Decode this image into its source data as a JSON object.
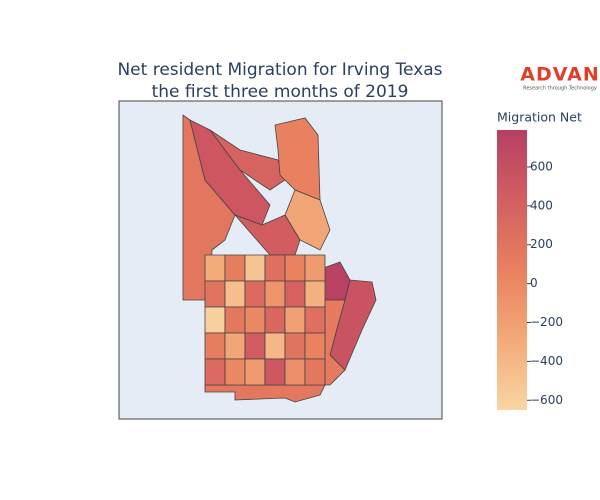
{
  "chart_data": {
    "type": "choropleth",
    "title": [
      "Net resident Migration for Irving Texas",
      "the first three months of 2019"
    ],
    "logo": {
      "name": "ADVAN",
      "tagline": "Research through Technology"
    },
    "colorbar_title": "Migration Net",
    "colorscale": [
      [
        0,
        "#f8d6a3"
      ],
      [
        0.25,
        "#f3aa79"
      ],
      [
        0.5,
        "#e9805f"
      ],
      [
        0.75,
        "#d45e60"
      ],
      [
        1,
        "#b73f63"
      ]
    ],
    "zlim": [
      -650,
      790
    ],
    "zticks": [
      {
        "value": 600,
        "label": "600"
      },
      {
        "value": 400,
        "label": "400"
      },
      {
        "value": 200,
        "label": "200"
      },
      {
        "value": 0,
        "label": "0"
      },
      {
        "value": -200,
        "label": "−200"
      },
      {
        "value": -400,
        "label": "−400"
      },
      {
        "value": -600,
        "label": "−600"
      }
    ],
    "values": [
      180,
      520,
      380,
      60,
      -250,
      450,
      760,
      560,
      120,
      150,
      -300,
      100,
      -500,
      250,
      50,
      -150,
      200,
      -450,
      300,
      -100,
      400,
      -350,
      -600,
      150,
      0,
      350,
      -200,
      250,
      100,
      -250,
      450,
      -400,
      200,
      50,
      300,
      0,
      -150,
      500,
      -50,
      150
    ]
  }
}
